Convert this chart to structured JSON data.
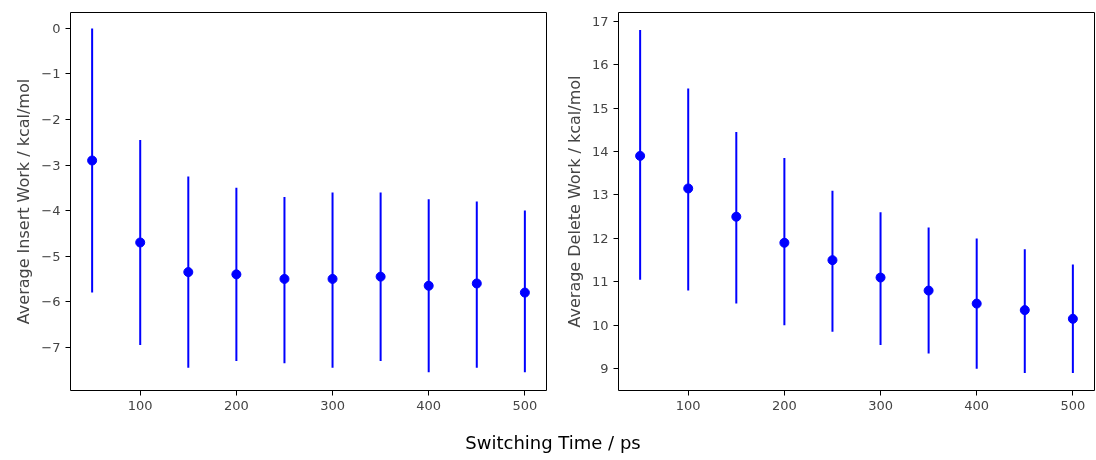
{
  "chart_data": [
    {
      "type": "scatter",
      "xlabel": "Switching Time / ps",
      "ylabel": "Average Insert Work / kcal/mol",
      "x": [
        50,
        100,
        150,
        200,
        250,
        300,
        350,
        400,
        450,
        500
      ],
      "marker": "circle",
      "grid": false,
      "series": [
        {
          "color": "#0000ff",
          "values": [
            -2.9,
            -4.7,
            -5.35,
            -5.4,
            -5.5,
            -5.5,
            -5.45,
            -5.65,
            -5.6,
            -5.8
          ],
          "errors": [
            [
              -5.8,
              0.0
            ],
            [
              -6.95,
              -2.45
            ],
            [
              -7.45,
              -3.25
            ],
            [
              -7.3,
              -3.5
            ],
            [
              -7.35,
              -3.7
            ],
            [
              -7.45,
              -3.6
            ],
            [
              -7.3,
              -3.6
            ],
            [
              -7.55,
              -3.75
            ],
            [
              -7.45,
              -3.8
            ],
            [
              -7.55,
              -4.0
            ]
          ]
        }
      ],
      "xlim": [
        27.5,
        522.5
      ],
      "xticks": [
        100,
        200,
        300,
        400,
        500
      ],
      "ylim": [
        -7.95,
        0.35
      ],
      "yticks": [
        -7,
        -6,
        -5,
        -4,
        -3,
        -2,
        -1,
        0
      ]
    },
    {
      "type": "scatter",
      "ylabel": "Average Delete Work / kcal/mol",
      "x": [
        50,
        100,
        150,
        200,
        250,
        300,
        350,
        400,
        450,
        500
      ],
      "marker": "circle",
      "grid": false,
      "series": [
        {
          "color": "#0000ff",
          "values": [
            13.9,
            13.15,
            12.5,
            11.9,
            11.5,
            11.1,
            10.8,
            10.5,
            10.35,
            10.15
          ],
          "errors": [
            [
              11.05,
              16.8
            ],
            [
              10.8,
              15.45
            ],
            [
              10.5,
              14.45
            ],
            [
              10.0,
              13.85
            ],
            [
              9.85,
              13.1
            ],
            [
              9.55,
              12.6
            ],
            [
              9.35,
              12.25
            ],
            [
              9.0,
              12.0
            ],
            [
              8.9,
              11.75
            ],
            [
              8.9,
              11.4
            ]
          ]
        }
      ],
      "xlim": [
        27.5,
        522.5
      ],
      "xticks": [
        100,
        200,
        300,
        400,
        500
      ],
      "ylim": [
        8.5,
        17.2
      ],
      "yticks": [
        9,
        10,
        11,
        12,
        13,
        14,
        15,
        16,
        17
      ]
    }
  ]
}
